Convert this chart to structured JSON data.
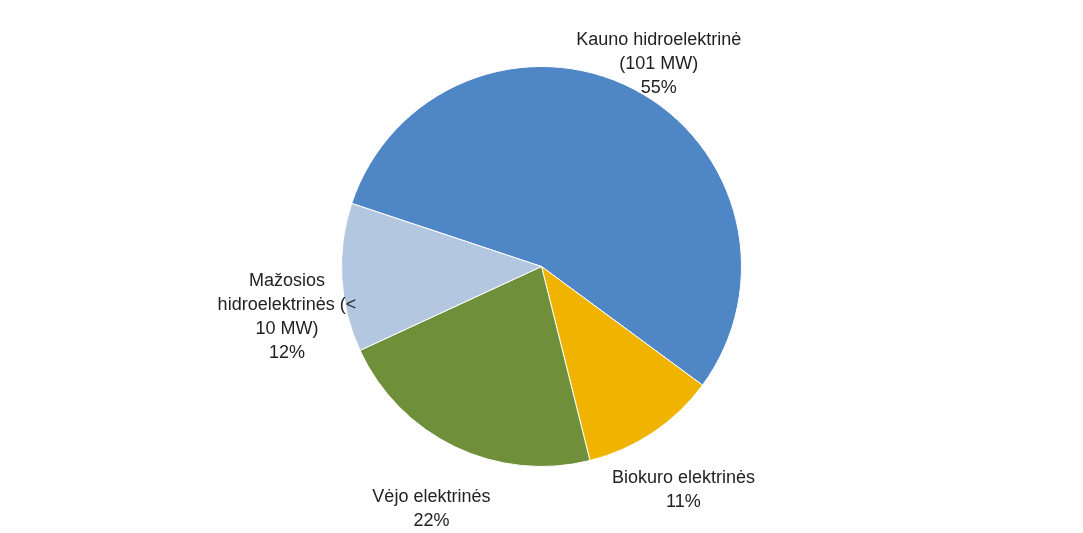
{
  "chart_data": {
    "type": "pie",
    "categories": [
      "Kauno hidroelektrinė (101 MW)",
      "Biokuro elektrinės",
      "Vėjo elektrinės",
      "Mažosios hidroelektrinės (< 10 MW)"
    ],
    "values": [
      55,
      11,
      22,
      12
    ],
    "value_labels": [
      "55%",
      "11%",
      "22%",
      "12%"
    ],
    "colors": [
      "#4f86c6",
      "#f0b400",
      "#6f8f3a",
      "#b4c7e0"
    ],
    "legend": false
  }
}
